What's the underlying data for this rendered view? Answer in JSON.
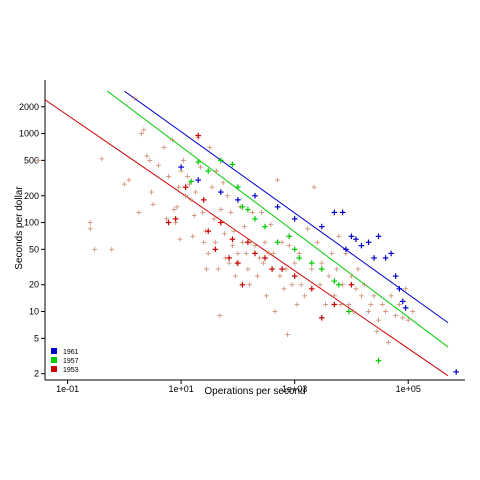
{
  "chart_data": {
    "type": "scatter",
    "title": "",
    "xlabel": "Operations per second",
    "ylabel": "Seconds per dollar",
    "x_scale": "log",
    "y_scale": "log",
    "xlim": [
      0.04,
      1000000
    ],
    "ylim": [
      1.7,
      4000
    ],
    "x_ticks": [
      {
        "value": 0.1,
        "label": "1e-01"
      },
      {
        "value": 10,
        "label": "1e+01"
      },
      {
        "value": 1000,
        "label": "1e+03"
      },
      {
        "value": 100000,
        "label": "1e+05"
      }
    ],
    "y_ticks": [
      {
        "value": 2,
        "label": "2"
      },
      {
        "value": 5,
        "label": "5"
      },
      {
        "value": 10,
        "label": "10"
      },
      {
        "value": 20,
        "label": "20"
      },
      {
        "value": 50,
        "label": "50"
      },
      {
        "value": 100,
        "label": "100"
      },
      {
        "value": 200,
        "label": "200"
      },
      {
        "value": 500,
        "label": "500"
      },
      {
        "value": 1000,
        "label": "1000"
      },
      {
        "value": 2000,
        "label": "2000"
      }
    ],
    "grid": false,
    "legend_position": "bottom-left",
    "legend": [
      {
        "label": "1961",
        "color": "#0000cc"
      },
      {
        "label": "1957",
        "color": "#00cc00"
      },
      {
        "label": "1953",
        "color": "#cc0000"
      }
    ],
    "lines": [
      {
        "name": "1961",
        "color": "#0000cc",
        "points": [
          [
            1.0,
            3000
          ],
          [
            500000,
            7.5
          ]
        ]
      },
      {
        "name": "1957",
        "color": "#00cc00",
        "points": [
          [
            0.5,
            3000
          ],
          [
            500000,
            4.0
          ]
        ]
      },
      {
        "name": "1953",
        "color": "#cc0000",
        "points": [
          [
            0.04,
            2400
          ],
          [
            500000,
            1.9
          ]
        ]
      }
    ],
    "background_points": {
      "color": "#cd8b6c",
      "points": [
        [
          0.03,
          500
        ],
        [
          0.4,
          520
        ],
        [
          0.25,
          100
        ],
        [
          0.25,
          85
        ],
        [
          0.3,
          50
        ],
        [
          0.6,
          50
        ],
        [
          1.0,
          270
        ],
        [
          1.2,
          300
        ],
        [
          1.5,
          2500
        ],
        [
          2,
          1000
        ],
        [
          2.2,
          1100
        ],
        [
          2.5,
          560
        ],
        [
          2.8,
          500
        ],
        [
          3,
          220
        ],
        [
          3.2,
          160
        ],
        [
          1.8,
          130
        ],
        [
          4,
          440
        ],
        [
          5,
          700
        ],
        [
          5.5,
          110
        ],
        [
          6,
          330
        ],
        [
          7,
          850
        ],
        [
          7.5,
          140
        ],
        [
          8,
          100
        ],
        [
          8.5,
          150
        ],
        [
          9,
          250
        ],
        [
          9.5,
          65
        ],
        [
          10,
          380
        ],
        [
          11,
          500
        ],
        [
          12,
          200
        ],
        [
          13,
          330
        ],
        [
          14,
          270
        ],
        [
          15,
          180
        ],
        [
          16,
          70
        ],
        [
          17,
          120
        ],
        [
          18,
          220
        ],
        [
          20,
          900
        ],
        [
          22,
          420
        ],
        [
          24,
          130
        ],
        [
          25,
          60
        ],
        [
          27,
          80
        ],
        [
          28,
          30
        ],
        [
          30,
          45
        ],
        [
          32,
          700
        ],
        [
          35,
          250
        ],
        [
          38,
          110
        ],
        [
          40,
          60
        ],
        [
          42,
          380
        ],
        [
          45,
          30
        ],
        [
          48,
          9
        ],
        [
          50,
          140
        ],
        [
          55,
          280
        ],
        [
          58,
          75
        ],
        [
          60,
          40
        ],
        [
          65,
          200
        ],
        [
          70,
          35
        ],
        [
          75,
          130
        ],
        [
          80,
          55
        ],
        [
          85,
          80
        ],
        [
          90,
          25
        ],
        [
          95,
          35
        ],
        [
          100,
          45
        ],
        [
          110,
          150
        ],
        [
          120,
          60
        ],
        [
          130,
          90
        ],
        [
          140,
          45
        ],
        [
          150,
          30
        ],
        [
          160,
          20
        ],
        [
          170,
          60
        ],
        [
          180,
          130
        ],
        [
          200,
          55
        ],
        [
          220,
          25
        ],
        [
          240,
          40
        ],
        [
          260,
          130
        ],
        [
          280,
          35
        ],
        [
          300,
          60
        ],
        [
          320,
          15
        ],
        [
          350,
          45
        ],
        [
          380,
          95
        ],
        [
          400,
          30
        ],
        [
          420,
          45
        ],
        [
          450,
          10
        ],
        [
          500,
          300
        ],
        [
          550,
          25
        ],
        [
          600,
          60
        ],
        [
          650,
          18
        ],
        [
          700,
          30
        ],
        [
          750,
          5.5
        ],
        [
          800,
          55
        ],
        [
          900,
          20
        ],
        [
          1000,
          35
        ],
        [
          1100,
          12
        ],
        [
          1200,
          45
        ],
        [
          1300,
          20
        ],
        [
          1500,
          15
        ],
        [
          1700,
          85
        ],
        [
          2000,
          30
        ],
        [
          2200,
          250
        ],
        [
          2500,
          60
        ],
        [
          2800,
          20
        ],
        [
          3000,
          35
        ],
        [
          3500,
          12
        ],
        [
          4000,
          25
        ],
        [
          4500,
          45
        ],
        [
          5000,
          15
        ],
        [
          5500,
          30
        ],
        [
          6000,
          70
        ],
        [
          6500,
          12
        ],
        [
          7000,
          20
        ],
        [
          8000,
          45
        ],
        [
          9000,
          12
        ],
        [
          10000,
          25
        ],
        [
          11000,
          10
        ],
        [
          12000,
          18
        ],
        [
          13000,
          30
        ],
        [
          15000,
          15
        ],
        [
          17000,
          20
        ],
        [
          20000,
          10
        ],
        [
          22000,
          12
        ],
        [
          25000,
          15
        ],
        [
          28000,
          6
        ],
        [
          30000,
          8
        ],
        [
          35000,
          12
        ],
        [
          40000,
          10
        ],
        [
          45000,
          4.5
        ],
        [
          50000,
          15
        ],
        [
          60000,
          9
        ],
        [
          70000,
          12
        ],
        [
          80000,
          8.5
        ],
        [
          90000,
          18
        ],
        [
          100000,
          8
        ],
        [
          120000,
          10
        ]
      ]
    },
    "series": [
      {
        "name": "1961",
        "color": "#0000cc",
        "points": [
          [
            10,
            420
          ],
          [
            20,
            300
          ],
          [
            50,
            220
          ],
          [
            100,
            180
          ],
          [
            200,
            200
          ],
          [
            500,
            150
          ],
          [
            1000,
            110
          ],
          [
            3000,
            90
          ],
          [
            5000,
            130
          ],
          [
            7000,
            130
          ],
          [
            8000,
            50
          ],
          [
            10000,
            70
          ],
          [
            12000,
            65
          ],
          [
            15000,
            55
          ],
          [
            20000,
            60
          ],
          [
            25000,
            40
          ],
          [
            30000,
            70
          ],
          [
            40000,
            40
          ],
          [
            50000,
            45
          ],
          [
            60000,
            25
          ],
          [
            70000,
            18
          ],
          [
            80000,
            13
          ],
          [
            90000,
            11
          ],
          [
            700000,
            2.1
          ]
        ]
      },
      {
        "name": "1957",
        "color": "#00cc00",
        "points": [
          [
            15,
            290
          ],
          [
            20,
            480
          ],
          [
            30,
            380
          ],
          [
            50,
            500
          ],
          [
            80,
            450
          ],
          [
            100,
            250
          ],
          [
            120,
            150
          ],
          [
            150,
            140
          ],
          [
            200,
            110
          ],
          [
            300,
            90
          ],
          [
            500,
            60
          ],
          [
            800,
            70
          ],
          [
            1000,
            50
          ],
          [
            1200,
            40
          ],
          [
            2000,
            35
          ],
          [
            3000,
            30
          ],
          [
            5000,
            22
          ],
          [
            6000,
            20
          ],
          [
            9000,
            10
          ],
          [
            30000,
            2.8
          ]
        ]
      },
      {
        "name": "1953",
        "color": "#cc0000",
        "points": [
          [
            6,
            100
          ],
          [
            8,
            110
          ],
          [
            12,
            250
          ],
          [
            20,
            950
          ],
          [
            25,
            180
          ],
          [
            30,
            80
          ],
          [
            40,
            50
          ],
          [
            50,
            100
          ],
          [
            70,
            40
          ],
          [
            80,
            65
          ],
          [
            100,
            35
          ],
          [
            120,
            20
          ],
          [
            150,
            60
          ],
          [
            200,
            45
          ],
          [
            300,
            40
          ],
          [
            400,
            30
          ],
          [
            600,
            30
          ],
          [
            1000,
            25
          ],
          [
            2000,
            18
          ],
          [
            3000,
            8.5
          ],
          [
            5000,
            12
          ],
          [
            10000,
            20
          ]
        ]
      }
    ]
  }
}
